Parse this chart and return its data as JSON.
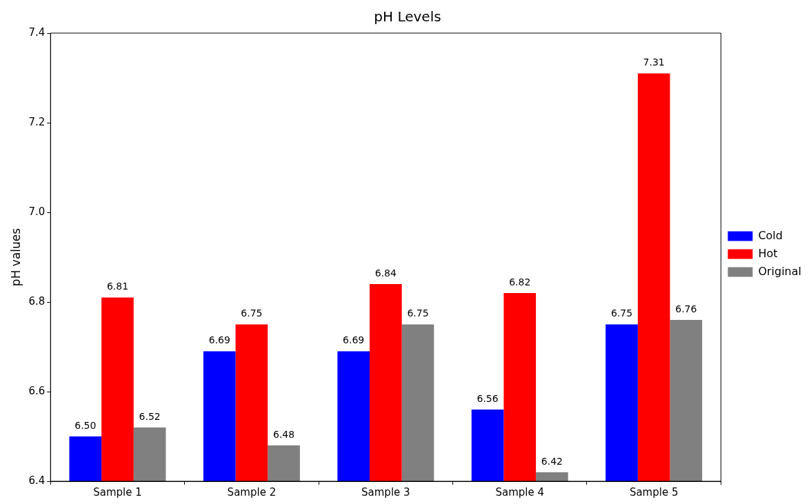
{
  "chart_data": {
    "type": "bar",
    "title": "pH Levels",
    "ylabel": "pH values",
    "categories": [
      "Sample 1",
      "Sample 2",
      "Sample 3",
      "Sample 4",
      "Sample 5"
    ],
    "series": [
      {
        "name": "Cold",
        "color": "#0000ff",
        "values": [
          6.5,
          6.69,
          6.69,
          6.56,
          6.75
        ],
        "value_labels": [
          "6.50",
          "6.69",
          "6.69",
          "6.56",
          "6.75"
        ]
      },
      {
        "name": "Hot",
        "color": "#ff0000",
        "values": [
          6.81,
          6.75,
          6.84,
          6.82,
          7.31
        ],
        "value_labels": [
          "6.81",
          "6.75",
          "6.84",
          "6.82",
          "7.31"
        ]
      },
      {
        "name": "Original",
        "color": "#808080",
        "values": [
          6.52,
          6.48,
          6.75,
          6.42,
          6.76
        ],
        "value_labels": [
          "6.52",
          "6.48",
          "6.75",
          "6.42",
          "6.76"
        ]
      }
    ],
    "ylim": [
      6.4,
      7.4
    ],
    "yticks": [
      6.4,
      6.6,
      6.8,
      {
        "value": 7,
        "label": "7.0"
      },
      7.2,
      7.4
    ],
    "grid": false,
    "legend": "right"
  }
}
